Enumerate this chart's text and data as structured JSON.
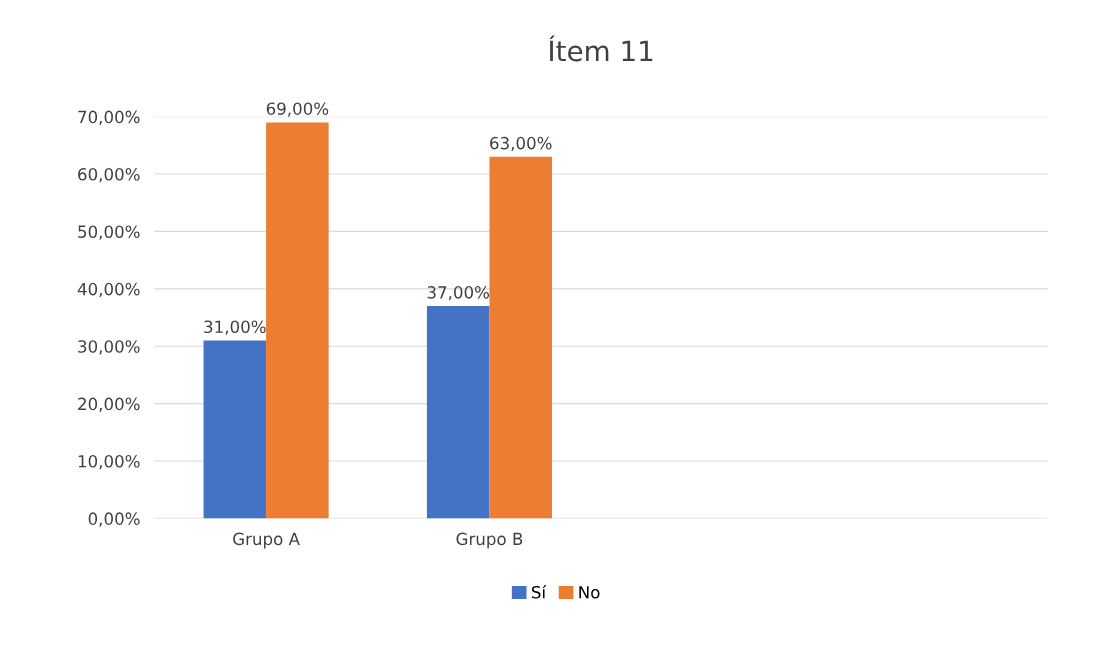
{
  "chart_data": {
    "type": "bar",
    "title": "Ítem 11",
    "categories": [
      "Grupo A",
      "Grupo B",
      null,
      null
    ],
    "series": [
      {
        "name": "Sí",
        "color": "#4472c4",
        "values": [
          31,
          37,
          null,
          null
        ],
        "value_labels": [
          "31,00%",
          "37,00%",
          null,
          null
        ]
      },
      {
        "name": "No",
        "color": "#ed7d31",
        "values": [
          69,
          63,
          null,
          null
        ],
        "value_labels": [
          "69,00%",
          "63,00%",
          null,
          null
        ]
      }
    ],
    "ylim": [
      0,
      70
    ],
    "yticks": [
      {
        "value": 0,
        "label": "0,00%"
      },
      {
        "value": 10,
        "label": "10,00%"
      },
      {
        "value": 20,
        "label": "20,00%"
      },
      {
        "value": 30,
        "label": "30,00%"
      },
      {
        "value": 40,
        "label": "40,00%"
      },
      {
        "value": 50,
        "label": "50,00%"
      },
      {
        "value": 60,
        "label": "60,00%"
      },
      {
        "value": 70,
        "label": "70,00%"
      }
    ],
    "grid": "y",
    "legend": "bottom"
  }
}
